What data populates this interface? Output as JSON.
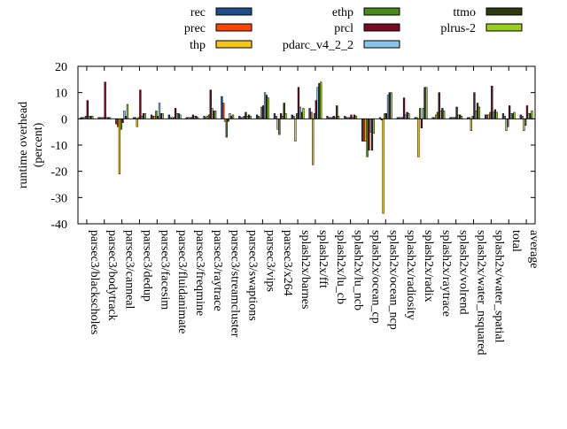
{
  "chart_data": {
    "type": "bar",
    "title": "",
    "xlabel": "",
    "ylabel": "runtime overhead\n(percent)",
    "ylim": [
      -40,
      20
    ],
    "yticks": [
      20,
      10,
      0,
      -10,
      -20,
      -30,
      -40
    ],
    "grid": false,
    "legend_position": "top",
    "categories": [
      "parsec3/blackscholes",
      "parsec3/bodytrack",
      "parsec3/canneal",
      "parsec3/dedup",
      "parsec3/facesim",
      "parsec3/fluidanimate",
      "parsec3/freqmine",
      "parsec3/raytrace",
      "parsec3/streamcluster",
      "parsec3/swaptions",
      "parsec3/vips",
      "parsec3/x264",
      "splash2x/barnes",
      "splash2x/fft",
      "splash2x/lu_cb",
      "splash2x/lu_ncb",
      "splash2x/ocean_cp",
      "splash2x/ocean_ncp",
      "splash2x/radiosity",
      "splash2x/radix",
      "splash2x/raytrace",
      "splash2x/volrend",
      "splash2x/water_nsquared",
      "splash2x/water_spatial",
      "total",
      "average"
    ],
    "series": [
      {
        "name": "rec",
        "color": "#1f4e8c",
        "values": [
          0.5,
          0.5,
          -2,
          0.5,
          1.5,
          1.5,
          0.5,
          1,
          8.5,
          1,
          1.5,
          2,
          1.5,
          4,
          1,
          1,
          -8.5,
          0.5,
          0.5,
          0.5,
          0.5,
          0.5,
          0.5,
          1.5,
          2,
          1.5
        ]
      },
      {
        "name": "prec",
        "color": "#ff4500",
        "values": [
          0.5,
          0.5,
          -3,
          0.5,
          1,
          0.5,
          0.5,
          0.5,
          6,
          0.5,
          1,
          1,
          1,
          2.5,
          0.5,
          0.5,
          -8.5,
          -0.5,
          0.5,
          0.5,
          0.5,
          0.5,
          0.5,
          1.5,
          1,
          1
        ]
      },
      {
        "name": "thp",
        "color": "#f5c518",
        "values": [
          0.5,
          0.5,
          -21,
          -3,
          1,
          0.5,
          0.5,
          1,
          -1,
          0.5,
          0.5,
          -4,
          -8.5,
          -17.5,
          0.5,
          0.5,
          -8.5,
          -36,
          0.5,
          -14.5,
          1.5,
          0.5,
          -4.5,
          1.5,
          -4.5,
          -4.5
        ]
      },
      {
        "name": "ethp",
        "color": "#4a8a1c",
        "values": [
          1,
          0.5,
          -4,
          0.5,
          3,
          0.5,
          0.5,
          1.5,
          -7,
          1,
          4.5,
          -6,
          2,
          2,
          0.5,
          0.5,
          -14.5,
          2,
          0.5,
          4,
          2.5,
          0.5,
          1,
          2.5,
          -3,
          -2.5
        ]
      },
      {
        "name": "prcl",
        "color": "#7a0a22",
        "values": [
          7,
          14,
          -1.5,
          11,
          1,
          4,
          1.5,
          11,
          -1,
          2.5,
          5,
          2,
          12,
          7,
          1,
          1.5,
          -12,
          2,
          8,
          -3.5,
          10,
          4.5,
          10,
          12.5,
          5,
          5
        ]
      },
      {
        "name": "pdarc_v4_2_2",
        "color": "#87c4ee",
        "values": [
          1,
          0.5,
          3,
          1,
          6,
          2,
          1,
          4,
          2,
          1,
          10,
          1,
          4.5,
          12,
          0.5,
          0.5,
          -5,
          9,
          1.5,
          4,
          3,
          1.5,
          3,
          2.5,
          2,
          2
        ]
      },
      {
        "name": "ttmo",
        "color": "#2e3a10",
        "values": [
          1,
          0.5,
          1,
          2,
          2,
          2,
          1,
          3,
          1,
          1.5,
          9,
          6,
          2.5,
          13.5,
          5,
          1.5,
          -12,
          10,
          2.5,
          12,
          4,
          1.5,
          6,
          3.5,
          2,
          2
        ]
      },
      {
        "name": "plrus-2",
        "color": "#9ace1c",
        "values": [
          1,
          0.5,
          5.5,
          2,
          2,
          1.5,
          0.5,
          3,
          1.5,
          1,
          8,
          2,
          4,
          14,
          1,
          1,
          -5.5,
          10,
          2,
          12,
          3,
          1,
          4.5,
          2.5,
          2.5,
          3
        ]
      }
    ]
  }
}
